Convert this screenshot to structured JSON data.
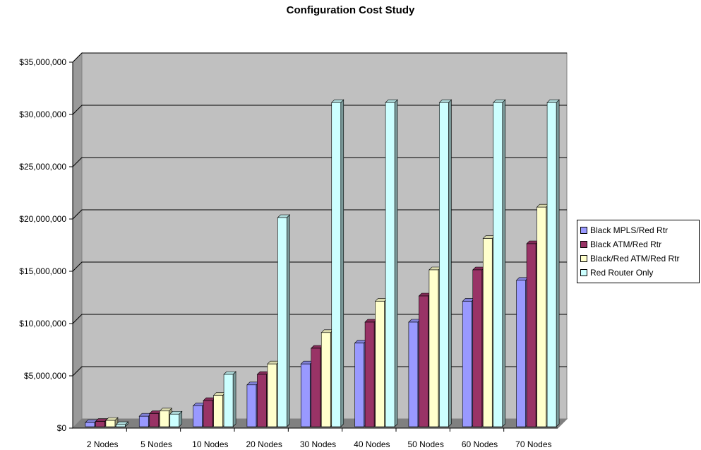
{
  "chart_data": {
    "type": "bar",
    "title": "Configuration Cost Study",
    "xlabel": "",
    "ylabel": "",
    "categories": [
      "2 Nodes",
      "5 Nodes",
      "10 Nodes",
      "20 Nodes",
      "30 Nodes",
      "40 Nodes",
      "50 Nodes",
      "60 Nodes",
      "70 Nodes"
    ],
    "y_ticks": [
      "$0",
      "$5,000,000",
      "$10,000,000",
      "$15,000,000",
      "$20,000,000",
      "$25,000,000",
      "$30,000,000",
      "$35,000,000"
    ],
    "ylim": [
      0,
      35000000
    ],
    "grid": true,
    "legend_position": "right",
    "plot_background": "#c0c0c0",
    "series": [
      {
        "name": "Black MPLS/Red Rtr",
        "color": "#9999ff",
        "values": [
          400000,
          1000000,
          2000000,
          4000000,
          6000000,
          8000000,
          10000000,
          12000000,
          14000000
        ]
      },
      {
        "name": "Black ATM/Red Rtr",
        "color": "#993366",
        "values": [
          500000,
          1250000,
          2500000,
          5000000,
          7500000,
          10000000,
          12500000,
          15000000,
          17500000
        ]
      },
      {
        "name": "Black/Red ATM/Red Rtr",
        "color": "#ffffcc",
        "values": [
          600000,
          1500000,
          3000000,
          6000000,
          9000000,
          12000000,
          15000000,
          18000000,
          21000000
        ]
      },
      {
        "name": "Red Router Only",
        "color": "#ccffff",
        "values": [
          200000,
          1200000,
          5000000,
          20000000,
          31000000,
          31000000,
          31000000,
          31000000,
          31000000
        ]
      }
    ]
  }
}
